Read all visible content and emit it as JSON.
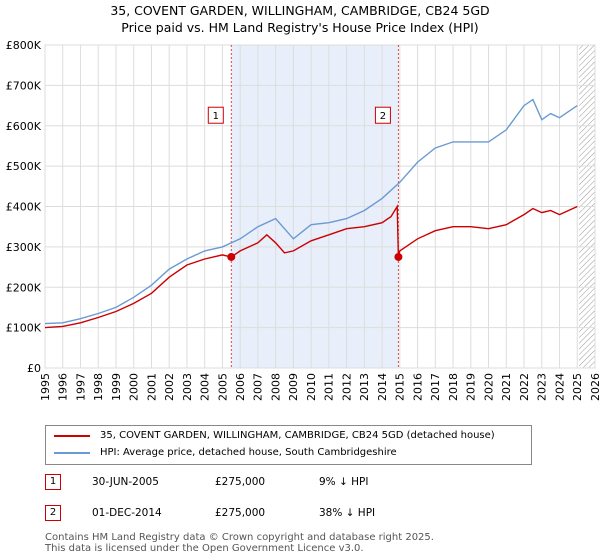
{
  "title_line1": "35, COVENT GARDEN, WILLINGHAM, CAMBRIDGE, CB24 5GD",
  "title_line2": "Price paid vs. HM Land Registry's House Price Index (HPI)",
  "colors": {
    "red": "#cc0000",
    "blue": "#6a9ad4",
    "band": "#e8eefa",
    "grid": "#dddddd"
  },
  "chart_data": {
    "type": "line",
    "xlim": [
      1995,
      2026
    ],
    "ylim": [
      0,
      800000
    ],
    "y_ticks": [
      0,
      100000,
      200000,
      300000,
      400000,
      500000,
      600000,
      700000,
      800000
    ],
    "y_tick_labels": [
      "£0",
      "£100K",
      "£200K",
      "£300K",
      "£400K",
      "£500K",
      "£600K",
      "£700K",
      "£800K"
    ],
    "x_ticks": [
      1995,
      1996,
      1997,
      1998,
      1999,
      2000,
      2001,
      2002,
      2003,
      2004,
      2005,
      2006,
      2007,
      2008,
      2009,
      2010,
      2011,
      2012,
      2013,
      2014,
      2015,
      2016,
      2017,
      2018,
      2019,
      2020,
      2021,
      2022,
      2023,
      2024,
      2025,
      2026
    ],
    "x_tick_labels": [
      "1995",
      "1996",
      "1997",
      "1998",
      "1999",
      "2000",
      "2001",
      "2002",
      "2003",
      "2004",
      "2005",
      "2006",
      "2007",
      "2008",
      "2009",
      "2010",
      "2011",
      "2012",
      "2013",
      "2014",
      "2015",
      "2016",
      "2017",
      "2018",
      "2019",
      "2020",
      "2021",
      "2022",
      "2023",
      "2024",
      "2025",
      "2026"
    ],
    "shaded_band": [
      2005.5,
      2014.92
    ],
    "hatch_from": 2025.1,
    "series": [
      {
        "name": "35, COVENT GARDEN, WILLINGHAM, CAMBRIDGE, CB24 5GD (detached house)",
        "color": "#cc0000",
        "x": [
          1995,
          1996,
          1997,
          1998,
          1999,
          2000,
          2001,
          2002,
          2003,
          2004,
          2005,
          2005.5,
          2006,
          2007,
          2007.5,
          2008,
          2008.5,
          2009,
          2010,
          2011,
          2012,
          2013,
          2014,
          2014.5,
          2014.85,
          2014.92,
          2015,
          2016,
          2017,
          2018,
          2019,
          2020,
          2021,
          2022,
          2022.5,
          2023,
          2023.5,
          2024,
          2025
        ],
        "y": [
          100000,
          103000,
          112000,
          125000,
          140000,
          160000,
          185000,
          225000,
          255000,
          270000,
          280000,
          275000,
          290000,
          310000,
          330000,
          310000,
          285000,
          290000,
          315000,
          330000,
          345000,
          350000,
          360000,
          375000,
          400000,
          275000,
          290000,
          320000,
          340000,
          350000,
          350000,
          345000,
          355000,
          380000,
          395000,
          385000,
          390000,
          380000,
          400000
        ]
      },
      {
        "name": "HPI: Average price, detached house, South Cambridgeshire",
        "color": "#6a9ad4",
        "x": [
          1995,
          1996,
          1997,
          1998,
          1999,
          2000,
          2001,
          2002,
          2003,
          2004,
          2005,
          2006,
          2007,
          2008,
          2008.5,
          2009,
          2010,
          2011,
          2012,
          2013,
          2014,
          2015,
          2016,
          2017,
          2018,
          2019,
          2020,
          2021,
          2022,
          2022.5,
          2023,
          2023.5,
          2024,
          2025
        ],
        "y": [
          110000,
          112000,
          122000,
          135000,
          150000,
          175000,
          205000,
          245000,
          270000,
          290000,
          300000,
          320000,
          350000,
          370000,
          345000,
          320000,
          355000,
          360000,
          370000,
          390000,
          420000,
          460000,
          510000,
          545000,
          560000,
          560000,
          560000,
          590000,
          650000,
          665000,
          615000,
          630000,
          620000,
          650000
        ]
      }
    ],
    "markers": [
      {
        "label": "1",
        "x": 2005.5,
        "y": 275000
      },
      {
        "label": "2",
        "x": 2014.92,
        "y": 275000
      }
    ]
  },
  "legend": {
    "red_label": "35, COVENT GARDEN, WILLINGHAM, CAMBRIDGE, CB24 5GD (detached house)",
    "blue_label": "HPI: Average price, detached house, South Cambridgeshire"
  },
  "transactions": [
    {
      "num": "1",
      "date": "30-JUN-2005",
      "price": "£275,000",
      "hpi": "9% ↓ HPI"
    },
    {
      "num": "2",
      "date": "01-DEC-2014",
      "price": "£275,000",
      "hpi": "38% ↓ HPI"
    }
  ],
  "footer_line1": "Contains HM Land Registry data © Crown copyright and database right 2025.",
  "footer_line2": "This data is licensed under the Open Government Licence v3.0."
}
